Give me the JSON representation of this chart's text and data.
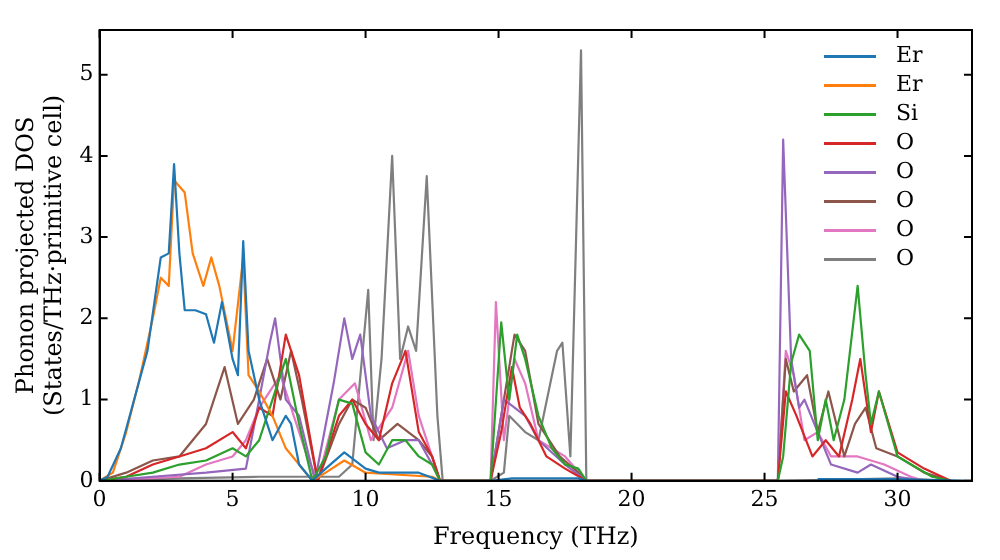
{
  "chart_data": {
    "type": "line",
    "xlabel": "Frequency (THz)",
    "ylabel": "Phonon projected DOS\n(States/THz·primitive cell)",
    "xlim": [
      0,
      32.8
    ],
    "ylim": [
      0,
      5.55
    ],
    "xticks": [
      0,
      5,
      10,
      15,
      20,
      25,
      30
    ],
    "yticks": [
      0,
      1,
      2,
      3,
      4,
      5
    ],
    "legend": "top right",
    "grid": false,
    "marker": "none",
    "line_style": "solid",
    "series": [
      {
        "name": "Er",
        "color": "#1f77b4",
        "x": [
          0,
          0.3,
          0.8,
          1.3,
          1.8,
          2.3,
          2.6,
          2.8,
          3.0,
          3.2,
          3.6,
          4.0,
          4.3,
          4.6,
          5.0,
          5.2,
          5.4,
          5.6,
          6.0,
          6.5,
          7.0,
          7.2,
          7.5,
          8.0,
          8.5,
          9.2,
          10.0,
          10.5,
          12.0,
          12.8,
          14.7,
          15.5,
          18.0,
          18.3,
          25.5,
          27,
          30,
          32.5
        ],
        "values": [
          0,
          0.05,
          0.4,
          1.0,
          1.6,
          2.75,
          2.8,
          3.9,
          2.8,
          2.1,
          2.1,
          2.05,
          1.7,
          2.2,
          1.5,
          1.3,
          2.95,
          1.6,
          1.0,
          0.5,
          0.8,
          0.7,
          0.2,
          0,
          0.15,
          0.35,
          0.15,
          0.1,
          0.1,
          0,
          0,
          0.03,
          0.03,
          0,
          null,
          0.02,
          0.02,
          0
        ]
      },
      {
        "name": "Er",
        "color": "#ff7f0e",
        "x": [
          0,
          0.5,
          1.0,
          1.5,
          2.0,
          2.3,
          2.6,
          2.8,
          3.2,
          3.5,
          3.9,
          4.2,
          4.5,
          5.0,
          5.4,
          5.6,
          6.0,
          6.5,
          7.0,
          7.5,
          8.0,
          8.5,
          9.2,
          10.0,
          12.5,
          12.8,
          14.7
        ],
        "values": [
          0,
          0.1,
          0.6,
          1.25,
          2.0,
          2.5,
          2.4,
          3.7,
          3.55,
          2.8,
          2.4,
          2.75,
          2.4,
          1.6,
          2.75,
          1.3,
          1.1,
          0.8,
          0.4,
          0.2,
          0,
          0.1,
          0.25,
          0.1,
          0.05,
          0,
          0
        ]
      },
      {
        "name": "Si",
        "color": "#2ca02c",
        "x": [
          0,
          1,
          2,
          3,
          4,
          5,
          5.5,
          6,
          6.5,
          7,
          7.5,
          8,
          8.5,
          9,
          9.5,
          10,
          10.5,
          11,
          11.5,
          12,
          12.5,
          12.8,
          14.7,
          15.1,
          15.4,
          15.7,
          16,
          16.5,
          17,
          17.5,
          18,
          18.3,
          25.5,
          25.7,
          26,
          26.3,
          26.7,
          27,
          27.3,
          27.6,
          28,
          28.5,
          28.8,
          29,
          29.3,
          30,
          31.3,
          32
        ],
        "values": [
          0,
          0.05,
          0.1,
          0.2,
          0.25,
          0.4,
          0.3,
          0.5,
          1.0,
          1.5,
          0.7,
          0,
          0.3,
          1.0,
          0.95,
          0.35,
          0.2,
          0.5,
          0.5,
          0.3,
          0.2,
          0,
          0,
          1.95,
          1.0,
          1.8,
          1.5,
          0.8,
          0.4,
          0.2,
          0.15,
          0,
          0,
          0.3,
          1.45,
          1.8,
          1.6,
          0.5,
          1.0,
          0.5,
          1.0,
          2.4,
          1.3,
          0.7,
          1.1,
          0.3,
          0.05,
          0
        ]
      },
      {
        "name": "O",
        "color": "#d62728",
        "x": [
          0,
          1,
          2,
          3,
          4,
          5,
          5.5,
          6,
          6.5,
          7,
          7.5,
          8.2,
          9,
          9.5,
          10,
          10.5,
          11,
          11.5,
          12,
          12.5,
          12.8,
          14.7,
          15.1,
          15.5,
          15.8,
          16.2,
          16.8,
          17.5,
          18.3,
          25.5,
          25.8,
          26.2,
          26.8,
          27.3,
          27.8,
          28.3,
          28.6,
          29,
          29.3,
          30,
          31,
          32
        ],
        "values": [
          0,
          0.05,
          0.2,
          0.3,
          0.4,
          0.6,
          0.4,
          0.9,
          0.8,
          1.8,
          1.3,
          0,
          0.8,
          1.0,
          0.7,
          0.5,
          1.2,
          1.6,
          0.6,
          0.3,
          0,
          0,
          0.6,
          1.4,
          0.9,
          0.7,
          0.3,
          0.15,
          0,
          0,
          1.1,
          0.8,
          0.3,
          0.5,
          0.3,
          1.0,
          1.5,
          0.6,
          1.1,
          0.35,
          0.15,
          0
        ]
      },
      {
        "name": "O",
        "color": "#9467bd",
        "x": [
          0,
          2,
          4,
          5.5,
          6,
          6.4,
          6.6,
          7,
          7.5,
          8.1,
          8.8,
          9.2,
          9.5,
          9.8,
          10.2,
          10.8,
          11.5,
          12,
          12.5,
          12.8,
          14.7,
          15.2,
          15.6,
          16,
          16.5,
          17.5,
          18.3,
          25.5,
          25.7,
          26,
          26.3,
          26.5,
          27,
          27.5,
          28.5,
          29,
          30,
          31
        ],
        "values": [
          0,
          0.05,
          0.1,
          0.15,
          1.0,
          1.7,
          2.0,
          1.0,
          0.8,
          0,
          1.2,
          2.0,
          1.5,
          1.8,
          0.8,
          0.4,
          0.5,
          0.5,
          0.2,
          0,
          0,
          1.0,
          0.9,
          0.8,
          0.5,
          0.2,
          0,
          0,
          4.2,
          1.5,
          0.9,
          1.0,
          0.6,
          0.2,
          0.1,
          0.2,
          0.05,
          0
        ]
      },
      {
        "name": "O",
        "color": "#8c564b",
        "x": [
          0,
          1,
          2,
          3,
          4,
          4.7,
          5.2,
          5.8,
          6.3,
          6.8,
          7.2,
          7.6,
          8.2,
          9,
          9.5,
          10,
          10.5,
          11.2,
          12,
          12.5,
          12.8,
          14.7,
          15.2,
          15.6,
          16,
          16.5,
          17.3,
          18,
          18.3,
          25.5,
          25.8,
          26.1,
          26.6,
          27,
          27.4,
          28,
          28.4,
          28.8,
          29.2,
          30,
          31,
          32
        ],
        "values": [
          0,
          0.1,
          0.25,
          0.3,
          0.7,
          1.4,
          0.7,
          1.0,
          1.5,
          1.0,
          1.6,
          1.0,
          0,
          0.7,
          1.0,
          0.9,
          0.5,
          0.7,
          0.5,
          0.3,
          0,
          0,
          1.0,
          1.8,
          1.6,
          0.7,
          0.3,
          0.1,
          0,
          0,
          1.5,
          1.1,
          1.3,
          0.6,
          1.1,
          0.3,
          0.7,
          0.9,
          0.4,
          0.3,
          0.1,
          0
        ]
      },
      {
        "name": "O",
        "color": "#e377c2",
        "x": [
          0,
          3,
          4,
          5,
          5.5,
          6,
          6.8,
          7.3,
          7.8,
          8.2,
          9,
          9.6,
          10.2,
          11,
          11.6,
          12,
          12.6,
          12.8,
          14.7,
          14.9,
          15.2,
          15.6,
          16,
          16.5,
          17.5,
          18.3,
          25.5,
          25.8,
          26.1,
          26.5,
          27,
          27.5,
          28.5,
          29.5,
          30.5,
          31
        ],
        "values": [
          0,
          0.05,
          0.2,
          0.3,
          0.5,
          0.9,
          1.3,
          0.8,
          0.3,
          0,
          1.0,
          1.2,
          0.5,
          0.9,
          1.6,
          0.8,
          0.2,
          0,
          0,
          2.2,
          0.5,
          1.5,
          1.2,
          0.5,
          0.3,
          0,
          0,
          1.6,
          1.3,
          0.5,
          0.6,
          0.3,
          0.3,
          0.2,
          0.05,
          0
        ]
      },
      {
        "name": "O",
        "color": "#7f7f7f",
        "x": [
          0,
          3,
          6,
          9,
          9.5,
          10.1,
          10.3,
          10.6,
          11.0,
          11.3,
          11.6,
          11.9,
          12.3,
          12.7,
          12.9,
          14.7,
          15.2,
          15.4,
          16,
          16.5,
          17.2,
          17.4,
          17.7,
          18.1,
          18.3,
          25.5,
          30,
          32
        ],
        "values": [
          0,
          0.03,
          0.05,
          0.05,
          0.2,
          2.35,
          0.5,
          1.5,
          4.0,
          1.5,
          1.9,
          1.6,
          3.75,
          0.8,
          0,
          0,
          0.1,
          0.8,
          0.6,
          0.5,
          1.6,
          1.7,
          0.3,
          5.3,
          0,
          0,
          0.03,
          0
        ]
      }
    ]
  }
}
